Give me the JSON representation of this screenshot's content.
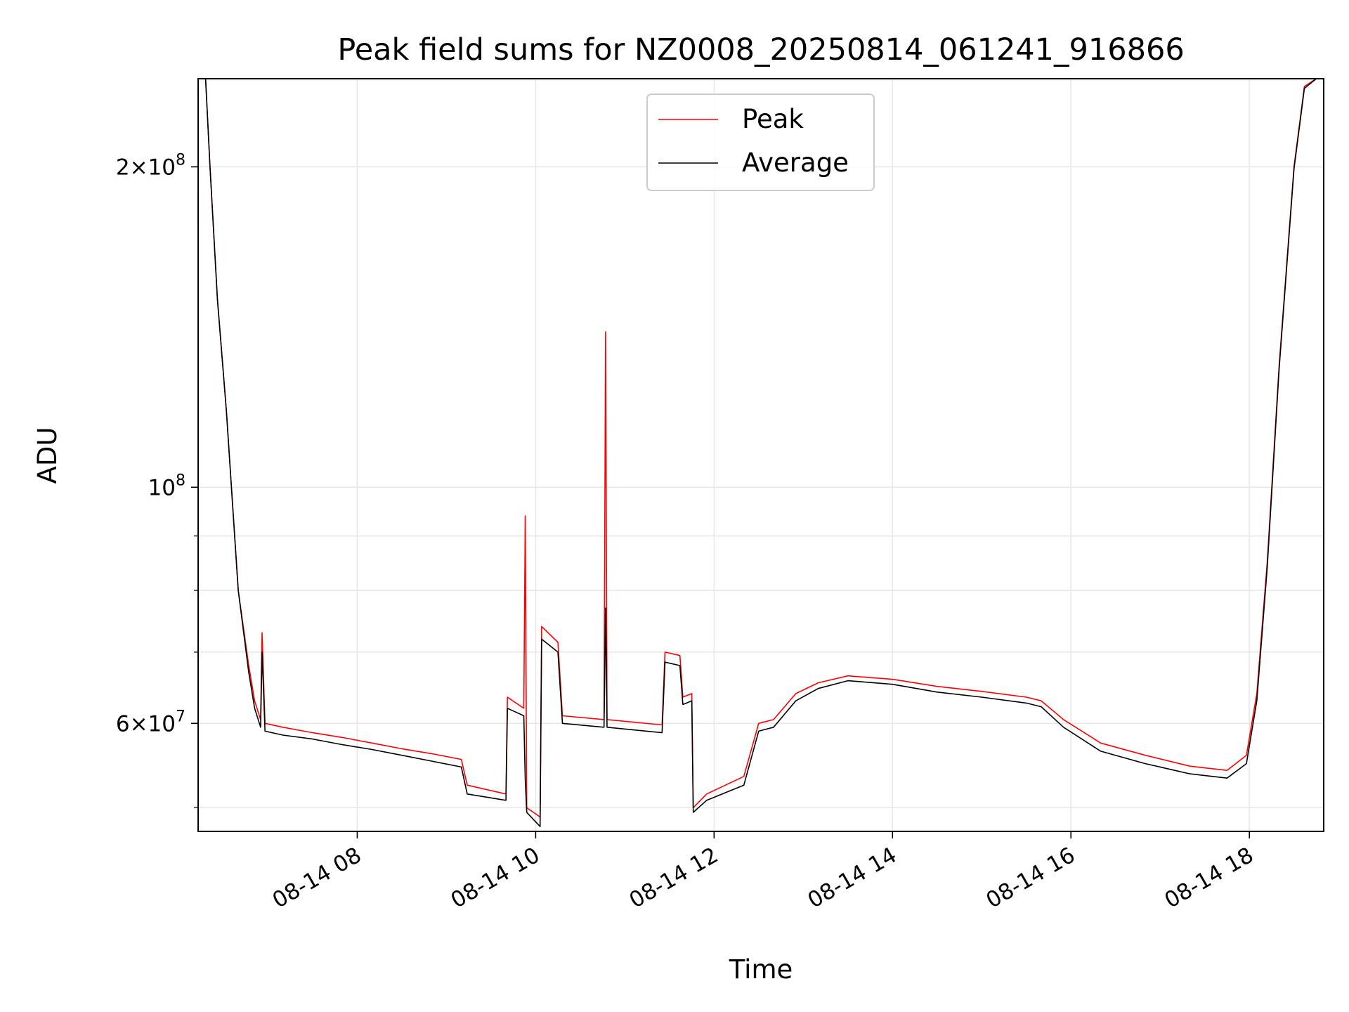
{
  "chart_data": {
    "type": "line",
    "title": "Peak field sums for NZ0008_20250814_061241_916866",
    "xlabel": "Time",
    "ylabel": "ADU",
    "x_scale": "time",
    "y_scale": "log",
    "xlim": [
      "08-14 06:13",
      "08-14 18:50"
    ],
    "ylim": [
      47500000,
      242000000
    ],
    "grid": true,
    "legend_position": "upper center",
    "x_ticks": [
      "08-14 08",
      "08-14 10",
      "08-14 12",
      "08-14 14",
      "08-14 16",
      "08-14 18"
    ],
    "y_ticks": [
      {
        "value": 60000000,
        "base": "6",
        "exp": "7"
      },
      {
        "value": 100000000,
        "base": "",
        "exp": "8"
      },
      {
        "value": 200000000,
        "base": "2",
        "exp": "8"
      }
    ],
    "series": [
      {
        "name": "Peak",
        "color": "#ff0000",
        "points": [
          [
            "08-14 06:18",
            242000000
          ],
          [
            "08-14 06:21",
            200000000
          ],
          [
            "08-14 06:26",
            150000000
          ],
          [
            "08-14 06:32",
            118000000
          ],
          [
            "08-14 06:40",
            80000000
          ],
          [
            "08-14 06:47",
            68000000
          ],
          [
            "08-14 06:51",
            63000000
          ],
          [
            "08-14 06:55",
            60500000
          ],
          [
            "08-14 06:56",
            73000000
          ],
          [
            "08-14 06:58",
            60000000
          ],
          [
            "08-14 07:10",
            59500000
          ],
          [
            "08-14 07:30",
            58800000
          ],
          [
            "08-14 07:50",
            58200000
          ],
          [
            "08-14 08:10",
            57500000
          ],
          [
            "08-14 08:30",
            56800000
          ],
          [
            "08-14 08:50",
            56200000
          ],
          [
            "08-14 09:10",
            55500000
          ],
          [
            "08-14 09:14",
            52500000
          ],
          [
            "08-14 09:40",
            51500000
          ],
          [
            "08-14 09:41",
            63500000
          ],
          [
            "08-14 09:52",
            62000000
          ],
          [
            "08-14 09:53",
            94000000
          ],
          [
            "08-14 09:54",
            50000000
          ],
          [
            "08-14 10:03",
            49000000
          ],
          [
            "08-14 10:04",
            74000000
          ],
          [
            "08-14 10:15",
            71500000
          ],
          [
            "08-14 10:18",
            61000000
          ],
          [
            "08-14 10:46",
            60500000
          ],
          [
            "08-14 10:47",
            140000000
          ],
          [
            "08-14 10:48",
            60500000
          ],
          [
            "08-14 11:25",
            59800000
          ],
          [
            "08-14 11:27",
            70000000
          ],
          [
            "08-14 11:37",
            69500000
          ],
          [
            "08-14 11:39",
            63500000
          ],
          [
            "08-14 11:45",
            64000000
          ],
          [
            "08-14 11:46",
            50000000
          ],
          [
            "08-14 11:55",
            51500000
          ],
          [
            "08-14 12:20",
            53500000
          ],
          [
            "08-14 12:30",
            60000000
          ],
          [
            "08-14 12:40",
            60500000
          ],
          [
            "08-14 12:55",
            64000000
          ],
          [
            "08-14 13:10",
            65500000
          ],
          [
            "08-14 13:30",
            66500000
          ],
          [
            "08-14 14:00",
            66000000
          ],
          [
            "08-14 14:30",
            65000000
          ],
          [
            "08-14 15:00",
            64300000
          ],
          [
            "08-14 15:30",
            63500000
          ],
          [
            "08-14 15:40",
            63000000
          ],
          [
            "08-14 15:55",
            60500000
          ],
          [
            "08-14 16:20",
            57500000
          ],
          [
            "08-14 16:50",
            56000000
          ],
          [
            "08-14 17:20",
            54700000
          ],
          [
            "08-14 17:45",
            54200000
          ],
          [
            "08-14 17:58",
            56000000
          ],
          [
            "08-14 18:05",
            64000000
          ],
          [
            "08-14 18:12",
            85000000
          ],
          [
            "08-14 18:20",
            130000000
          ],
          [
            "08-14 18:30",
            200000000
          ],
          [
            "08-14 18:37",
            238000000
          ],
          [
            "08-14 18:45",
            242000000
          ]
        ]
      },
      {
        "name": "Average",
        "color": "#000000",
        "points": [
          [
            "08-14 06:18",
            242000000
          ],
          [
            "08-14 06:21",
            200000000
          ],
          [
            "08-14 06:26",
            150000000
          ],
          [
            "08-14 06:32",
            118000000
          ],
          [
            "08-14 06:40",
            80000000
          ],
          [
            "08-14 06:47",
            67000000
          ],
          [
            "08-14 06:51",
            62000000
          ],
          [
            "08-14 06:55",
            59500000
          ],
          [
            "08-14 06:56",
            70000000
          ],
          [
            "08-14 06:58",
            59000000
          ],
          [
            "08-14 07:10",
            58500000
          ],
          [
            "08-14 07:30",
            58000000
          ],
          [
            "08-14 07:50",
            57300000
          ],
          [
            "08-14 08:10",
            56700000
          ],
          [
            "08-14 08:30",
            56000000
          ],
          [
            "08-14 08:50",
            55300000
          ],
          [
            "08-14 09:10",
            54600000
          ],
          [
            "08-14 09:14",
            51500000
          ],
          [
            "08-14 09:40",
            50800000
          ],
          [
            "08-14 09:41",
            62000000
          ],
          [
            "08-14 09:52",
            61000000
          ],
          [
            "08-14 09:53",
            53000000
          ],
          [
            "08-14 09:54",
            49500000
          ],
          [
            "08-14 10:03",
            48000000
          ],
          [
            "08-14 10:04",
            72000000
          ],
          [
            "08-14 10:15",
            70000000
          ],
          [
            "08-14 10:18",
            60000000
          ],
          [
            "08-14 10:46",
            59500000
          ],
          [
            "08-14 10:47",
            77000000
          ],
          [
            "08-14 10:48",
            59500000
          ],
          [
            "08-14 11:25",
            58800000
          ],
          [
            "08-14 11:27",
            68500000
          ],
          [
            "08-14 11:37",
            68000000
          ],
          [
            "08-14 11:39",
            62500000
          ],
          [
            "08-14 11:45",
            63000000
          ],
          [
            "08-14 11:46",
            49500000
          ],
          [
            "08-14 11:55",
            50800000
          ],
          [
            "08-14 12:20",
            52500000
          ],
          [
            "08-14 12:30",
            59000000
          ],
          [
            "08-14 12:40",
            59500000
          ],
          [
            "08-14 12:55",
            63000000
          ],
          [
            "08-14 13:10",
            64700000
          ],
          [
            "08-14 13:30",
            65800000
          ],
          [
            "08-14 14:00",
            65300000
          ],
          [
            "08-14 14:30",
            64200000
          ],
          [
            "08-14 15:00",
            63500000
          ],
          [
            "08-14 15:30",
            62700000
          ],
          [
            "08-14 15:40",
            62200000
          ],
          [
            "08-14 15:55",
            59500000
          ],
          [
            "08-14 16:20",
            56500000
          ],
          [
            "08-14 16:50",
            55000000
          ],
          [
            "08-14 17:20",
            53800000
          ],
          [
            "08-14 17:45",
            53300000
          ],
          [
            "08-14 17:58",
            55000000
          ],
          [
            "08-14 18:05",
            63000000
          ],
          [
            "08-14 18:12",
            84000000
          ],
          [
            "08-14 18:20",
            129000000
          ],
          [
            "08-14 18:30",
            199000000
          ],
          [
            "08-14 18:37",
            237000000
          ],
          [
            "08-14 18:45",
            242000000
          ]
        ]
      }
    ]
  }
}
